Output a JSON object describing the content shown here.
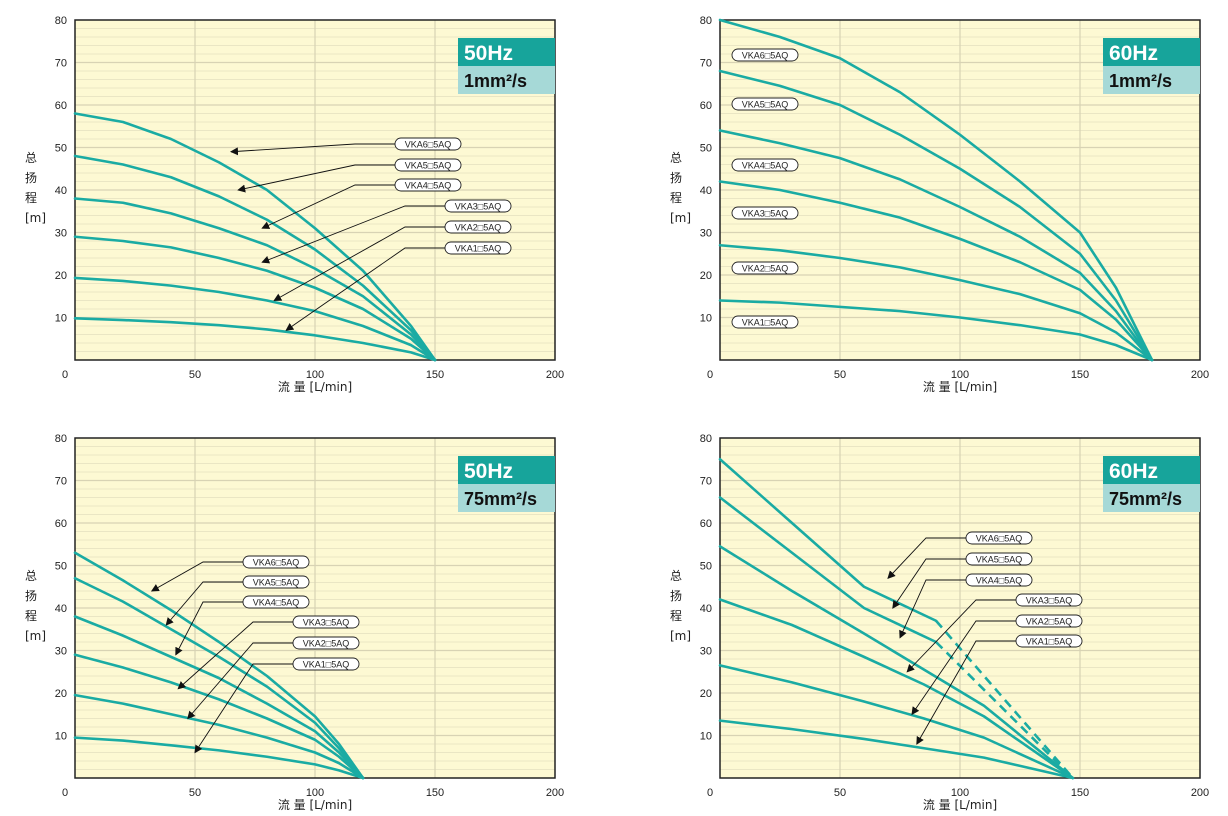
{
  "chart_data": [
    {
      "type": "line",
      "frequency": "50Hz",
      "viscosity": "1mm²/s",
      "xlabel": "流 量 [L/min]",
      "ylabel": "总扬程[m]",
      "xlim": [
        0,
        200
      ],
      "ylim": [
        0,
        80
      ],
      "xticks": [
        "0",
        "50",
        "100",
        "150",
        "200"
      ],
      "yticks": [
        "10",
        "20",
        "30",
        "40",
        "50",
        "60",
        "70",
        "80"
      ],
      "grid": true,
      "series": [
        {
          "name": "VKA6□5AQ",
          "x": [
            0,
            20,
            40,
            60,
            80,
            100,
            120,
            140,
            150
          ],
          "y": [
            58,
            56,
            52,
            46.5,
            40,
            31,
            21,
            8,
            0
          ]
        },
        {
          "name": "VKA5□5AQ",
          "x": [
            0,
            20,
            40,
            60,
            80,
            100,
            120,
            140,
            150
          ],
          "y": [
            48,
            46,
            43,
            38.5,
            33,
            26,
            17.5,
            7,
            0
          ]
        },
        {
          "name": "VKA4□5AQ",
          "x": [
            0,
            20,
            40,
            60,
            80,
            100,
            120,
            140,
            150
          ],
          "y": [
            38,
            37,
            34.5,
            31,
            27,
            21.5,
            15,
            6,
            0
          ]
        },
        {
          "name": "VKA3□5AQ",
          "x": [
            0,
            20,
            40,
            60,
            80,
            100,
            120,
            140,
            150
          ],
          "y": [
            29,
            28,
            26.5,
            24,
            21,
            17,
            12,
            5,
            0
          ]
        },
        {
          "name": "VKA2□5AQ",
          "x": [
            0,
            20,
            40,
            60,
            80,
            100,
            120,
            140,
            150
          ],
          "y": [
            19.3,
            18.6,
            17.5,
            16,
            14,
            11.5,
            8,
            3.5,
            0
          ]
        },
        {
          "name": "VKA1□5AQ",
          "x": [
            0,
            20,
            40,
            60,
            80,
            100,
            120,
            140,
            150
          ],
          "y": [
            9.8,
            9.4,
            8.9,
            8.2,
            7.2,
            5.8,
            4,
            1.8,
            0
          ]
        }
      ],
      "callouts": [
        {
          "series": "VKA6□5AQ",
          "at": [
            65,
            49
          ]
        },
        {
          "series": "VKA5□5AQ",
          "at": [
            68,
            40
          ]
        },
        {
          "series": "VKA4□5AQ",
          "at": [
            78,
            31
          ]
        },
        {
          "series": "VKA3□5AQ",
          "at": [
            78,
            23
          ]
        },
        {
          "series": "VKA2□5AQ",
          "at": [
            83,
            14
          ]
        },
        {
          "series": "VKA1□5AQ",
          "at": [
            88,
            7
          ]
        }
      ]
    },
    {
      "type": "line",
      "frequency": "60Hz",
      "viscosity": "1mm²/s",
      "xlabel": "流 量 [L/min]",
      "ylabel": "总扬程[m]",
      "xlim": [
        0,
        200
      ],
      "ylim": [
        0,
        80
      ],
      "xticks": [
        "0",
        "50",
        "100",
        "150",
        "200"
      ],
      "yticks": [
        "10",
        "20",
        "30",
        "40",
        "50",
        "60",
        "70",
        "80"
      ],
      "grid": true,
      "series": [
        {
          "name": "VKA6□5AQ",
          "x": [
            0,
            25,
            50,
            75,
            100,
            125,
            150,
            165,
            180
          ],
          "y": [
            80,
            76,
            71,
            63,
            53,
            42,
            30,
            17,
            0
          ]
        },
        {
          "name": "VKA5□5AQ",
          "x": [
            0,
            25,
            50,
            75,
            100,
            125,
            150,
            165,
            180
          ],
          "y": [
            68,
            64.5,
            60,
            53,
            45,
            36,
            25,
            14,
            0
          ]
        },
        {
          "name": "VKA4□5AQ",
          "x": [
            0,
            25,
            50,
            75,
            100,
            125,
            150,
            165,
            180
          ],
          "y": [
            54,
            51,
            47.5,
            42.5,
            36,
            29,
            20.5,
            11.5,
            0
          ]
        },
        {
          "name": "VKA3□5AQ",
          "x": [
            0,
            25,
            50,
            75,
            100,
            125,
            150,
            165,
            180
          ],
          "y": [
            42,
            40,
            37,
            33.5,
            28.5,
            23,
            16.5,
            9.5,
            0
          ]
        },
        {
          "name": "VKA2□5AQ",
          "x": [
            0,
            25,
            50,
            75,
            100,
            125,
            150,
            165,
            180
          ],
          "y": [
            27,
            25.8,
            24,
            21.8,
            18.8,
            15.5,
            11,
            6.5,
            0
          ]
        },
        {
          "name": "VKA1□5AQ",
          "x": [
            0,
            25,
            50,
            75,
            100,
            125,
            150,
            165,
            180
          ],
          "y": [
            14,
            13.5,
            12.5,
            11.5,
            10,
            8.2,
            6,
            3.5,
            0
          ]
        }
      ]
    },
    {
      "type": "line",
      "frequency": "50Hz",
      "viscosity": "75mm²/s",
      "xlabel": "流 量 [L/min]",
      "ylabel": "总扬程[m]",
      "xlim": [
        0,
        200
      ],
      "ylim": [
        0,
        80
      ],
      "xticks": [
        "0",
        "50",
        "100",
        "150",
        "200"
      ],
      "yticks": [
        "10",
        "20",
        "30",
        "40",
        "50",
        "60",
        "70",
        "80"
      ],
      "grid": true,
      "series": [
        {
          "name": "VKA6□5AQ",
          "x": [
            0,
            20,
            40,
            60,
            80,
            100,
            110,
            120
          ],
          "y": [
            53,
            46.5,
            39.5,
            32,
            24,
            14.5,
            8,
            0
          ]
        },
        {
          "name": "VKA5□5AQ",
          "x": [
            0,
            20,
            40,
            60,
            80,
            100,
            110,
            120
          ],
          "y": [
            47,
            41.5,
            35,
            28.5,
            21.5,
            13,
            7,
            0
          ]
        },
        {
          "name": "VKA4□5AQ",
          "x": [
            0,
            20,
            40,
            60,
            80,
            100,
            110,
            120
          ],
          "y": [
            38,
            33.5,
            28.5,
            23.5,
            17.5,
            11,
            6,
            0
          ]
        },
        {
          "name": "VKA3□5AQ",
          "x": [
            0,
            20,
            40,
            60,
            80,
            100,
            110,
            120
          ],
          "y": [
            29,
            26,
            22.5,
            18.5,
            14,
            9,
            5,
            0
          ]
        },
        {
          "name": "VKA2□5AQ",
          "x": [
            0,
            20,
            40,
            60,
            80,
            100,
            110,
            120
          ],
          "y": [
            19.5,
            17.5,
            15,
            12.5,
            9.5,
            6,
            3.5,
            0
          ]
        },
        {
          "name": "VKA1□5AQ",
          "x": [
            0,
            20,
            40,
            60,
            80,
            100,
            110,
            120
          ],
          "y": [
            9.5,
            8.8,
            7.7,
            6.5,
            5,
            3.2,
            1.8,
            0
          ]
        }
      ],
      "callouts": [
        {
          "series": "VKA6□5AQ",
          "at": [
            32,
            44
          ]
        },
        {
          "series": "VKA5□5AQ",
          "at": [
            38,
            36
          ]
        },
        {
          "series": "VKA4□5AQ",
          "at": [
            42,
            29
          ]
        },
        {
          "series": "VKA3□5AQ",
          "at": [
            43,
            21
          ]
        },
        {
          "series": "VKA2□5AQ",
          "at": [
            47,
            14
          ]
        },
        {
          "series": "VKA1□5AQ",
          "at": [
            50,
            6
          ]
        }
      ]
    },
    {
      "type": "line",
      "frequency": "60Hz",
      "viscosity": "75mm²/s",
      "xlabel": "流 量 [L/min]",
      "ylabel": "总扬程[m]",
      "xlim": [
        0,
        200
      ],
      "ylim": [
        0,
        80
      ],
      "xticks": [
        "0",
        "50",
        "100",
        "150",
        "200"
      ],
      "yticks": [
        "10",
        "20",
        "30",
        "40",
        "50",
        "60",
        "70",
        "80"
      ],
      "grid": true,
      "series": [
        {
          "name": "VKA6□5AQ",
          "x": [
            0,
            30,
            60,
            90
          ],
          "y": [
            75,
            60,
            45,
            37
          ],
          "dashed": {
            "x": [
              90,
              147
            ],
            "y": [
              37,
              0
            ]
          }
        },
        {
          "name": "VKA5□5AQ",
          "x": [
            0,
            30,
            60,
            90
          ],
          "y": [
            66,
            53,
            40,
            32
          ],
          "dashed": {
            "x": [
              90,
              147
            ],
            "y": [
              32,
              0
            ]
          }
        },
        {
          "name": "VKA4□5AQ",
          "x": [
            0,
            30,
            60,
            85,
            110,
            147
          ],
          "y": [
            54.5,
            44,
            34,
            25.5,
            17,
            0
          ]
        },
        {
          "name": "VKA3□5AQ",
          "x": [
            0,
            30,
            60,
            85,
            110,
            147
          ],
          "y": [
            42,
            36,
            28.5,
            22,
            14.5,
            0
          ]
        },
        {
          "name": "VKA2□5AQ",
          "x": [
            0,
            30,
            60,
            85,
            110,
            147
          ],
          "y": [
            26.5,
            22.5,
            18,
            14,
            9.5,
            0
          ]
        },
        {
          "name": "VKA1□5AQ",
          "x": [
            0,
            30,
            60,
            85,
            110,
            147
          ],
          "y": [
            13.5,
            11.5,
            9.2,
            7,
            4.8,
            0
          ]
        }
      ],
      "callouts": [
        {
          "series": "VKA6□5AQ",
          "at": [
            70,
            47
          ]
        },
        {
          "series": "VKA5□5AQ",
          "at": [
            72,
            40
          ]
        },
        {
          "series": "VKA4□5AQ",
          "at": [
            75,
            33
          ]
        },
        {
          "series": "VKA3□5AQ",
          "at": [
            78,
            25
          ]
        },
        {
          "series": "VKA2□5AQ",
          "at": [
            80,
            15
          ]
        },
        {
          "series": "VKA1□5AQ",
          "at": [
            82,
            8
          ]
        }
      ]
    }
  ],
  "colors": {
    "line": "#1aaba3",
    "plot_bg": "#fdf9d3",
    "grid": "#d8d3b4",
    "badge_dark": "#17a49b",
    "badge_light": "#a6d9d7"
  }
}
